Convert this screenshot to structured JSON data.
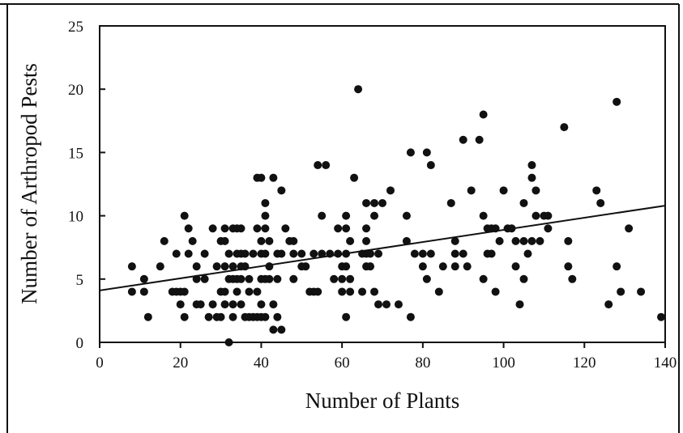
{
  "chart_data": {
    "type": "scatter",
    "title": "",
    "xlabel": "Number of Plants",
    "ylabel": "Number of Arthropod Pests",
    "xlim": [
      0,
      140
    ],
    "ylim": [
      0,
      25
    ],
    "x_ticks": [
      0,
      20,
      40,
      60,
      80,
      100,
      120,
      140
    ],
    "y_ticks": [
      0,
      5,
      10,
      15,
      20,
      25
    ],
    "grid": false,
    "legend": "none",
    "marker_color": "#111111",
    "trendline": {
      "type": "linear",
      "x": [
        0,
        140
      ],
      "y": [
        4.1,
        10.8
      ]
    },
    "points": [
      [
        8,
        6
      ],
      [
        8,
        4
      ],
      [
        11,
        5
      ],
      [
        11,
        4
      ],
      [
        12,
        2
      ],
      [
        15,
        6
      ],
      [
        16,
        8
      ],
      [
        18,
        4
      ],
      [
        19,
        4
      ],
      [
        19,
        7
      ],
      [
        20,
        3
      ],
      [
        20,
        4
      ],
      [
        21,
        10
      ],
      [
        21,
        4
      ],
      [
        21,
        2
      ],
      [
        22,
        9
      ],
      [
        22,
        7
      ],
      [
        23,
        8
      ],
      [
        24,
        6
      ],
      [
        24,
        5
      ],
      [
        24,
        3
      ],
      [
        25,
        3
      ],
      [
        26,
        7
      ],
      [
        26,
        5
      ],
      [
        27,
        2
      ],
      [
        28,
        3
      ],
      [
        28,
        9
      ],
      [
        29,
        6
      ],
      [
        29,
        2
      ],
      [
        30,
        8
      ],
      [
        30,
        4
      ],
      [
        30,
        2
      ],
      [
        31,
        9
      ],
      [
        31,
        8
      ],
      [
        31,
        6
      ],
      [
        31,
        4
      ],
      [
        31,
        3
      ],
      [
        32,
        5
      ],
      [
        32,
        7
      ],
      [
        32,
        0
      ],
      [
        33,
        9
      ],
      [
        33,
        6
      ],
      [
        33,
        5
      ],
      [
        33,
        3
      ],
      [
        33,
        2
      ],
      [
        34,
        9
      ],
      [
        34,
        7
      ],
      [
        34,
        5
      ],
      [
        34,
        4
      ],
      [
        35,
        9
      ],
      [
        35,
        7
      ],
      [
        35,
        6
      ],
      [
        35,
        5
      ],
      [
        35,
        3
      ],
      [
        36,
        7
      ],
      [
        36,
        6
      ],
      [
        36,
        2
      ],
      [
        37,
        5
      ],
      [
        37,
        4
      ],
      [
        37,
        2
      ],
      [
        38,
        7
      ],
      [
        38,
        2
      ],
      [
        39,
        13
      ],
      [
        39,
        9
      ],
      [
        39,
        4
      ],
      [
        39,
        2
      ],
      [
        40,
        13
      ],
      [
        40,
        8
      ],
      [
        40,
        7
      ],
      [
        40,
        5
      ],
      [
        40,
        3
      ],
      [
        40,
        2
      ],
      [
        41,
        10
      ],
      [
        41,
        11
      ],
      [
        41,
        9
      ],
      [
        41,
        7
      ],
      [
        41,
        5
      ],
      [
        41,
        2
      ],
      [
        42,
        8
      ],
      [
        42,
        6
      ],
      [
        42,
        5
      ],
      [
        43,
        13
      ],
      [
        43,
        3
      ],
      [
        43,
        1
      ],
      [
        44,
        7
      ],
      [
        44,
        5
      ],
      [
        44,
        2
      ],
      [
        45,
        7
      ],
      [
        45,
        12
      ],
      [
        45,
        1
      ],
      [
        46,
        9
      ],
      [
        47,
        8
      ],
      [
        48,
        8
      ],
      [
        48,
        5
      ],
      [
        48,
        7
      ],
      [
        50,
        6
      ],
      [
        50,
        7
      ],
      [
        51,
        6
      ],
      [
        52,
        4
      ],
      [
        53,
        7
      ],
      [
        53,
        4
      ],
      [
        54,
        14
      ],
      [
        54,
        4
      ],
      [
        55,
        10
      ],
      [
        55,
        7
      ],
      [
        56,
        14
      ],
      [
        57,
        7
      ],
      [
        58,
        5
      ],
      [
        59,
        9
      ],
      [
        59,
        7
      ],
      [
        60,
        6
      ],
      [
        60,
        5
      ],
      [
        60,
        4
      ],
      [
        61,
        10
      ],
      [
        61,
        9
      ],
      [
        61,
        7
      ],
      [
        61,
        6
      ],
      [
        61,
        2
      ],
      [
        62,
        8
      ],
      [
        62,
        5
      ],
      [
        62,
        4
      ],
      [
        63,
        13
      ],
      [
        64,
        20
      ],
      [
        65,
        7
      ],
      [
        65,
        4
      ],
      [
        66,
        11
      ],
      [
        66,
        9
      ],
      [
        66,
        8
      ],
      [
        66,
        7
      ],
      [
        66,
        6
      ],
      [
        67,
        7
      ],
      [
        67,
        6
      ],
      [
        68,
        11
      ],
      [
        68,
        10
      ],
      [
        68,
        4
      ],
      [
        69,
        7
      ],
      [
        69,
        3
      ],
      [
        70,
        11
      ],
      [
        71,
        3
      ],
      [
        72,
        12
      ],
      [
        74,
        3
      ],
      [
        76,
        10
      ],
      [
        76,
        8
      ],
      [
        77,
        15
      ],
      [
        77,
        2
      ],
      [
        78,
        7
      ],
      [
        80,
        7
      ],
      [
        80,
        6
      ],
      [
        81,
        15
      ],
      [
        81,
        5
      ],
      [
        82,
        14
      ],
      [
        82,
        7
      ],
      [
        84,
        4
      ],
      [
        85,
        6
      ],
      [
        87,
        11
      ],
      [
        88,
        8
      ],
      [
        88,
        7
      ],
      [
        88,
        6
      ],
      [
        90,
        16
      ],
      [
        90,
        7
      ],
      [
        91,
        6
      ],
      [
        92,
        12
      ],
      [
        94,
        16
      ],
      [
        95,
        18
      ],
      [
        95,
        10
      ],
      [
        95,
        5
      ],
      [
        96,
        9
      ],
      [
        96,
        7
      ],
      [
        97,
        9
      ],
      [
        97,
        7
      ],
      [
        98,
        9
      ],
      [
        98,
        4
      ],
      [
        99,
        8
      ],
      [
        100,
        12
      ],
      [
        101,
        9
      ],
      [
        102,
        9
      ],
      [
        103,
        6
      ],
      [
        103,
        8
      ],
      [
        104,
        3
      ],
      [
        105,
        11
      ],
      [
        105,
        5
      ],
      [
        105,
        8
      ],
      [
        106,
        7
      ],
      [
        107,
        14
      ],
      [
        107,
        13
      ],
      [
        107,
        8
      ],
      [
        108,
        12
      ],
      [
        108,
        10
      ],
      [
        109,
        8
      ],
      [
        110,
        10
      ],
      [
        111,
        9
      ],
      [
        111,
        10
      ],
      [
        115,
        17
      ],
      [
        116,
        8
      ],
      [
        116,
        6
      ],
      [
        117,
        5
      ],
      [
        123,
        12
      ],
      [
        124,
        11
      ],
      [
        126,
        3
      ],
      [
        128,
        19
      ],
      [
        128,
        6
      ],
      [
        129,
        4
      ],
      [
        131,
        9
      ],
      [
        134,
        4
      ],
      [
        139,
        2
      ]
    ]
  }
}
